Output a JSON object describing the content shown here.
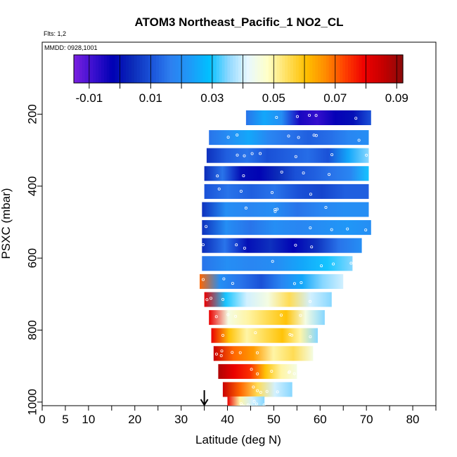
{
  "title": "ATOM3 Northeast_Pacific_1 NO2_CL",
  "info_lines": [
    "Flts: 1,2",
    "MMDD: 0928,1001"
  ],
  "colors": {
    "palette": [
      "#7a1fe0",
      "#3b10d0",
      "#0000b4",
      "#0b2ab8",
      "#1a52d8",
      "#2d7ff0",
      "#1e9af8",
      "#00c0ff",
      "#8fd8ff",
      "#e8f8ff",
      "#ffffc8",
      "#ffe060",
      "#ffc000",
      "#ff8c00",
      "#ff4000",
      "#ee0000",
      "#c40000",
      "#8a0a0a"
    ]
  },
  "chart_data": {
    "type": "heatmap",
    "title": "ATOM3 Northeast_Pacific_1 NO2_CL",
    "xlabel": "Latitude (deg N)",
    "ylabel": "PSXC (mbar)",
    "xlim": [
      0,
      85
    ],
    "ylim": [
      1010,
      0
    ],
    "x_ticks": [
      0,
      5,
      10,
      20,
      30,
      40,
      50,
      60,
      70,
      80
    ],
    "x_minor_ticks": [
      15,
      25,
      35,
      45,
      55,
      65,
      75,
      85
    ],
    "y_ticks": [
      200,
      400,
      600,
      800,
      1000
    ],
    "colorbar": {
      "range": [
        -0.015,
        0.092
      ],
      "tick_values": [
        -0.01,
        0.01,
        0.03,
        0.05,
        0.07,
        0.09
      ],
      "tick_labels": [
        "-0.01",
        "0.01",
        "0.03",
        "0.05",
        "0.07",
        "0.09"
      ],
      "boundaries": [
        -0.01,
        0.0,
        0.01,
        0.02,
        0.03,
        0.04,
        0.05,
        0.06,
        0.07,
        0.08,
        0.09
      ]
    },
    "marker_latitude": 35,
    "layers": [
      {
        "p": 210,
        "x0": 44,
        "x1": 71,
        "v": [
          0.015,
          0.025,
          0.02,
          -0.005,
          -0.008,
          -0.003,
          0.0,
          0.01
        ]
      },
      {
        "p": 265,
        "x0": 36,
        "x1": 70.5,
        "v": [
          0.015,
          0.02,
          0.025,
          0.018,
          0.015,
          0.012,
          0.014,
          0.018,
          0.02
        ]
      },
      {
        "p": 315,
        "x0": 35.5,
        "x1": 70.5,
        "v": [
          0.005,
          0.012,
          0.015,
          0.01,
          0.012,
          0.014,
          0.01,
          0.025,
          0.035
        ]
      },
      {
        "p": 365,
        "x0": 35,
        "x1": 70.5,
        "v": [
          0.004,
          0.015,
          0.0,
          -0.002,
          0.004,
          0.01,
          0.012,
          0.015,
          0.018,
          0.03
        ]
      },
      {
        "p": 415,
        "x0": 35,
        "x1": 70.5,
        "v": [
          0.01,
          0.015,
          0.012,
          0.015,
          0.01,
          0.008,
          0.012,
          0.012
        ]
      },
      {
        "p": 465,
        "x0": 34.5,
        "x1": 70.5,
        "v": [
          0.005,
          0.02,
          0.018,
          0.02,
          0.015,
          0.018,
          0.02,
          0.02
        ]
      },
      {
        "p": 515,
        "x0": 34.5,
        "x1": 71,
        "v": [
          0.005,
          0.02,
          0.015,
          0.02,
          0.018,
          0.02,
          0.022,
          0.02
        ]
      },
      {
        "p": 565,
        "x0": 34.5,
        "x1": 69,
        "v": [
          0.004,
          0.015,
          0.0,
          0.005,
          -0.002,
          0.005,
          0.015,
          0.02
        ]
      },
      {
        "p": 615,
        "x0": 34.5,
        "x1": 67,
        "v": [
          0.015,
          0.02,
          0.018,
          0.02,
          0.025,
          0.03,
          0.035
        ]
      },
      {
        "p": 665,
        "x0": 34,
        "x1": 65,
        "v": [
          0.07,
          0.02,
          0.015,
          0.01,
          0.018,
          0.025,
          0.035,
          0.04
        ]
      },
      {
        "p": 715,
        "x0": 35,
        "x1": 62.5,
        "v": [
          0.08,
          0.03,
          0.04,
          0.045,
          0.055,
          0.04,
          0.035
        ]
      },
      {
        "p": 765,
        "x0": 36,
        "x1": 61,
        "v": [
          0.08,
          0.045,
          0.05,
          0.055,
          0.06,
          0.045,
          0.035
        ]
      },
      {
        "p": 815,
        "x0": 36.5,
        "x1": 59.5,
        "v": [
          0.08,
          0.06,
          0.05,
          0.055,
          0.06,
          0.05,
          0.035
        ]
      },
      {
        "p": 865,
        "x0": 37,
        "x1": 58.5,
        "v": [
          0.085,
          0.07,
          0.065,
          0.05,
          0.055,
          0.045
        ]
      },
      {
        "p": 915,
        "x0": 38,
        "x1": 55,
        "v": [
          0.088,
          0.08,
          0.075,
          0.06,
          0.05,
          0.045
        ]
      },
      {
        "p": 965,
        "x0": 39,
        "x1": 54,
        "v": [
          0.085,
          0.07,
          0.055,
          0.04,
          0.035
        ]
      },
      {
        "p": 1005,
        "x0": 40,
        "x1": 48,
        "v": [
          0.08,
          0.05,
          0.04,
          0.035
        ]
      }
    ]
  }
}
